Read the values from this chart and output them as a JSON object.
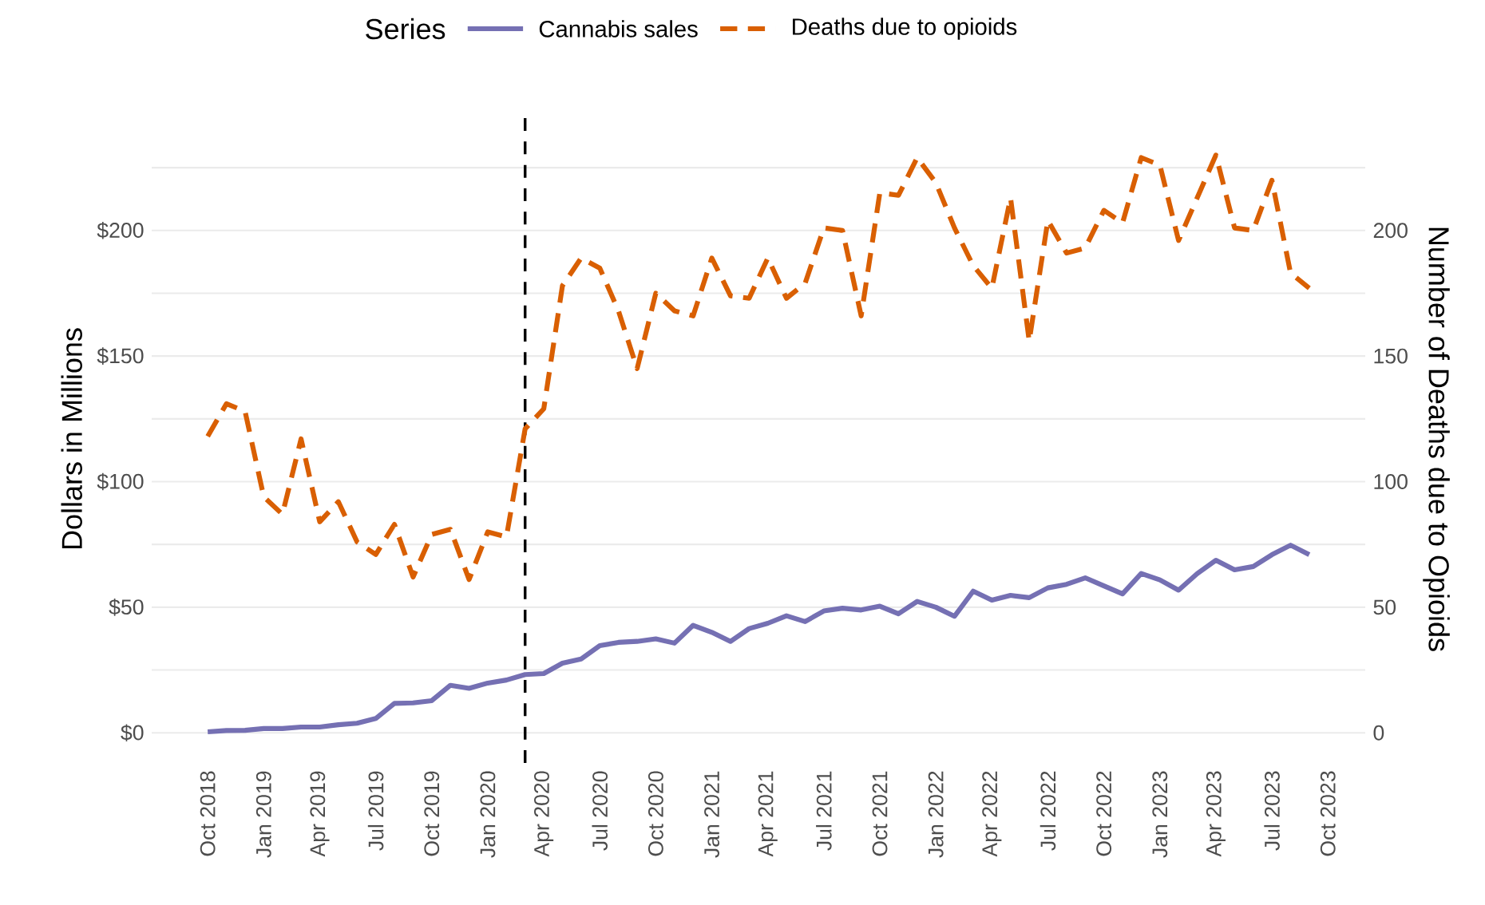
{
  "chart_data": {
    "type": "line",
    "xlabel": null,
    "ylabel": "Dollars in Millions",
    "y2label": "Number of Deaths due to Opioids",
    "legend_title": "Series",
    "legend": "top",
    "grid": "y",
    "x": [
      "2018-10",
      "2018-11",
      "2018-12",
      "2019-01",
      "2019-02",
      "2019-03",
      "2019-04",
      "2019-05",
      "2019-06",
      "2019-07",
      "2019-08",
      "2019-09",
      "2019-10",
      "2019-11",
      "2019-12",
      "2020-01",
      "2020-02",
      "2020-03",
      "2020-04",
      "2020-05",
      "2020-06",
      "2020-07",
      "2020-08",
      "2020-09",
      "2020-10",
      "2020-11",
      "2020-12",
      "2021-01",
      "2021-02",
      "2021-03",
      "2021-04",
      "2021-05",
      "2021-06",
      "2021-07",
      "2021-08",
      "2021-09",
      "2021-10",
      "2021-11",
      "2021-12",
      "2022-01",
      "2022-02",
      "2022-03",
      "2022-04",
      "2022-05",
      "2022-06",
      "2022-07",
      "2022-08",
      "2022-09",
      "2022-10",
      "2022-11",
      "2022-12",
      "2023-01",
      "2023-02",
      "2023-03",
      "2023-04",
      "2023-05",
      "2023-06",
      "2023-07",
      "2023-08",
      "2023-09"
    ],
    "series": [
      {
        "name": "Cannabis sales",
        "color": "#7570b3",
        "line_style": "solid",
        "values": [
          0.4,
          0.9,
          1,
          1.7,
          1.7,
          2.3,
          2.3,
          3.2,
          3.8,
          5.7,
          11.7,
          11.9,
          12.8,
          18.9,
          17.7,
          19.8,
          21,
          23.2,
          23.6,
          27.7,
          29.4,
          34.7,
          36,
          36.4,
          37.4,
          35.7,
          42.8,
          40,
          36.4,
          41.5,
          43.6,
          46.6,
          44.3,
          48.5,
          49.6,
          48.9,
          50.4,
          47.4,
          52.3,
          50,
          46.4,
          56.4,
          52.8,
          54.7,
          53.8,
          57.7,
          59.1,
          61.7,
          58.5,
          55.3,
          63.4,
          60.9,
          56.8,
          63.4,
          68.7,
          64.9,
          66.2,
          70.9,
          74.7,
          70.9
        ]
      },
      {
        "name": "Deaths due to opioids",
        "color": "#d95f02",
        "line_style": "dashed",
        "axis": "y2",
        "values": [
          118,
          131,
          128,
          94,
          87,
          117,
          84,
          92,
          76,
          71,
          83,
          62,
          79,
          81,
          61,
          80,
          78,
          121,
          129,
          178,
          189,
          185,
          168,
          145,
          175,
          168,
          166,
          189,
          174,
          173,
          189,
          173,
          179,
          201,
          200,
          166,
          215,
          214,
          229,
          219,
          201,
          186,
          177,
          213,
          156,
          204,
          191,
          193,
          208,
          203,
          229,
          226,
          196,
          213,
          230,
          201,
          200,
          220,
          183,
          177
        ]
      }
    ],
    "xlim": [
      "2018-07",
      "2023-12"
    ],
    "xticks": [
      {
        "value": "2018-10",
        "label": "Oct 2018"
      },
      {
        "value": "2019-01",
        "label": "Jan 2019"
      },
      {
        "value": "2019-04",
        "label": "Apr 2019"
      },
      {
        "value": "2019-07",
        "label": "Jul 2019"
      },
      {
        "value": "2019-10",
        "label": "Oct 2019"
      },
      {
        "value": "2020-01",
        "label": "Jan 2020"
      },
      {
        "value": "2020-04",
        "label": "Apr 2020"
      },
      {
        "value": "2020-07",
        "label": "Jul 2020"
      },
      {
        "value": "2020-10",
        "label": "Oct 2020"
      },
      {
        "value": "2021-01",
        "label": "Jan 2021"
      },
      {
        "value": "2021-04",
        "label": "Apr 2021"
      },
      {
        "value": "2021-07",
        "label": "Jul 2021"
      },
      {
        "value": "2021-10",
        "label": "Oct 2021"
      },
      {
        "value": "2022-01",
        "label": "Jan 2022"
      },
      {
        "value": "2022-04",
        "label": "Apr 2022"
      },
      {
        "value": "2022-07",
        "label": "Jul 2022"
      },
      {
        "value": "2022-10",
        "label": "Oct 2022"
      },
      {
        "value": "2023-01",
        "label": "Jan 2023"
      },
      {
        "value": "2023-04",
        "label": "Apr 2023"
      },
      {
        "value": "2023-07",
        "label": "Jul 2023"
      },
      {
        "value": "2023-10",
        "label": "Oct 2023"
      }
    ],
    "ylim": [
      -12,
      246
    ],
    "yticks": [
      {
        "value": 0,
        "label": "$0"
      },
      {
        "value": 25,
        "label": null
      },
      {
        "value": 50,
        "label": "$50"
      },
      {
        "value": 75,
        "label": null
      },
      {
        "value": 100,
        "label": "$100"
      },
      {
        "value": 125,
        "label": null
      },
      {
        "value": 150,
        "label": "$150"
      },
      {
        "value": 175,
        "label": null
      },
      {
        "value": 200,
        "label": "$200"
      },
      {
        "value": 225,
        "label": null
      }
    ],
    "y2lim": [
      -12,
      246
    ],
    "y2ticks": [
      0,
      50,
      100,
      150,
      200
    ],
    "ref_lines": [
      {
        "axis": "x",
        "value": "2020-03",
        "color": "#000000",
        "line_style": "dashed"
      }
    ]
  }
}
